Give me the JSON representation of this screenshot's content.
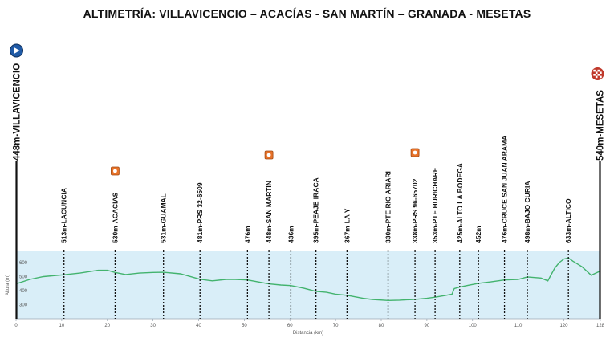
{
  "page": {
    "title": "ALTIMETRÍA: VILLAVICENCIO – ACACÍAS - SAN MARTÍN – GRANADA - MESETAS"
  },
  "colors": {
    "plot_bg": "#d9eef8",
    "profile_line": "#43b36e",
    "waypoint_line": "#111111",
    "start_icon": "#1f5aa6",
    "finish_icon": "#c0392b",
    "sprint_icon": "#e8732a"
  },
  "icons": {
    "start": "start-flag-icon",
    "finish": "finish-flag-icon",
    "sprint": "sprint-point-icon"
  },
  "chart_data": {
    "type": "area",
    "title": "ALTIMETRÍA: VILLAVICENCIO – ACACÍAS - SAN MARTÍN – GRANADA - MESETAS",
    "xlabel": "Distancia (km)",
    "ylabel": "Altura (m)",
    "xlim": [
      0,
      128
    ],
    "ylim": [
      200,
      680
    ],
    "x_ticks": [
      0,
      10,
      20,
      30,
      40,
      50,
      60,
      70,
      80,
      90,
      100,
      110,
      120,
      128
    ],
    "y_ticks": [
      300,
      400,
      500,
      600
    ],
    "grid": false,
    "start": {
      "label": "448m-VILLAVICENCIO",
      "km": 0
    },
    "finish": {
      "label": "540m-MESETAS",
      "km": 128
    },
    "waypoints": [
      {
        "label": "513m-LACUNCIA",
        "km": 10.5
      },
      {
        "label": "530m-ACACIAS",
        "km": 21.7
      },
      {
        "label": "531m-GUAMAL",
        "km": 32.3
      },
      {
        "label": "481m-PRS 32-6509",
        "km": 40.3
      },
      {
        "label": "476m",
        "km": 50.7
      },
      {
        "label": "448m-SAN MARTIN",
        "km": 55.4
      },
      {
        "label": "436m",
        "km": 60.2
      },
      {
        "label": "395m-PEAJE IRACA",
        "km": 65.7
      },
      {
        "label": "367m-LA Y",
        "km": 72.5
      },
      {
        "label": "330m-PTE RIO ARIARI",
        "km": 81.5
      },
      {
        "label": "338m-PRS 96-65702",
        "km": 87.4
      },
      {
        "label": "353m-PTE HURICHARE",
        "km": 91.8
      },
      {
        "label": "425m-ALTO LA BODEGA",
        "km": 97.2
      },
      {
        "label": "452m",
        "km": 101.3
      },
      {
        "label": "476m-CRUCE SAN JUAN ARAMA",
        "km": 107.0
      },
      {
        "label": "498m-BAJO CURIA",
        "km": 112.0
      },
      {
        "label": "633m-ALTICO",
        "km": 121.0
      }
    ],
    "sprint_points_km": [
      21.7,
      55.4,
      87.4
    ],
    "series": [
      {
        "x": [
          0,
          3,
          6,
          10.5,
          14,
          18,
          20,
          21.7,
          24,
          27,
          30,
          32.3,
          36,
          40.3,
          43,
          46,
          48,
          50.7,
          53,
          55.4,
          58,
          60.2,
          63,
          65.7,
          68,
          70,
          72.5,
          76,
          78,
          81.5,
          84,
          87.4,
          90,
          91.8,
          94,
          95.5,
          96,
          97.2,
          99,
          101.3,
          104,
          107,
          110,
          112,
          115,
          116.5,
          117,
          118,
          119,
          120,
          121,
          122,
          124,
          126,
          128
        ],
        "y": [
          448,
          480,
          500,
          513,
          525,
          545,
          545,
          530,
          515,
          525,
          530,
          531,
          520,
          481,
          470,
          480,
          480,
          476,
          462,
          448,
          440,
          436,
          418,
          395,
          388,
          375,
          367,
          345,
          337,
          330,
          332,
          338,
          345,
          353,
          365,
          375,
          415,
          425,
          438,
          452,
          462,
          476,
          480,
          498,
          490,
          470,
          500,
          560,
          600,
          625,
          633,
          610,
          570,
          510,
          540
        ]
      }
    ]
  }
}
